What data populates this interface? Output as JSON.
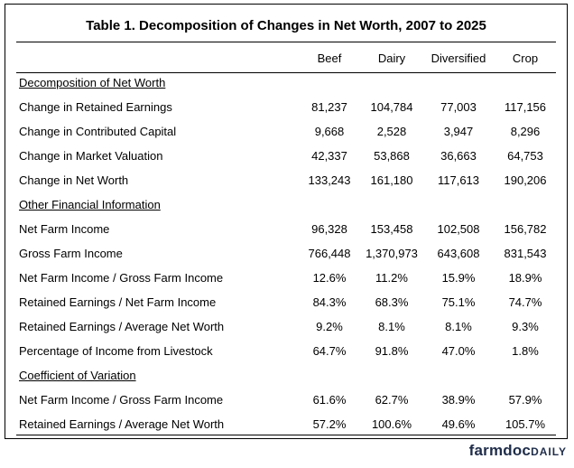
{
  "title": "Table 1.  Decomposition of Changes in Net Worth, 2007 to 2025",
  "columns": [
    "Beef",
    "Dairy",
    "Diversified",
    "Crop"
  ],
  "rows": [
    {
      "label": "Decomposition of Net Worth",
      "section": true,
      "values": [
        "",
        "",
        "",
        ""
      ]
    },
    {
      "label": "Change in Retained Earnings",
      "section": false,
      "values": [
        "81,237",
        "104,784",
        "77,003",
        "117,156"
      ]
    },
    {
      "label": "Change in Contributed Capital",
      "section": false,
      "values": [
        "9,668",
        "2,528",
        "3,947",
        "8,296"
      ]
    },
    {
      "label": "Change in Market Valuation",
      "section": false,
      "values": [
        "42,337",
        "53,868",
        "36,663",
        "64,753"
      ]
    },
    {
      "label": "Change in Net Worth",
      "section": false,
      "values": [
        "133,243",
        "161,180",
        "117,613",
        "190,206"
      ]
    },
    {
      "label": "Other Financial Information",
      "section": true,
      "values": [
        "",
        "",
        "",
        ""
      ]
    },
    {
      "label": "Net Farm Income",
      "section": false,
      "values": [
        "96,328",
        "153,458",
        "102,508",
        "156,782"
      ]
    },
    {
      "label": "Gross Farm Income",
      "section": false,
      "values": [
        "766,448",
        "1,370,973",
        "643,608",
        "831,543"
      ]
    },
    {
      "label": "Net Farm Income / Gross Farm Income",
      "section": false,
      "values": [
        "12.6%",
        "11.2%",
        "15.9%",
        "18.9%"
      ]
    },
    {
      "label": "Retained Earnings / Net Farm Income",
      "section": false,
      "values": [
        "84.3%",
        "68.3%",
        "75.1%",
        "74.7%"
      ]
    },
    {
      "label": "Retained Earnings / Average Net Worth",
      "section": false,
      "values": [
        "9.2%",
        "8.1%",
        "8.1%",
        "9.3%"
      ]
    },
    {
      "label": "Percentage of Income from Livestock",
      "section": false,
      "values": [
        "64.7%",
        "91.8%",
        "47.0%",
        "1.8%"
      ]
    },
    {
      "label": "Coefficient of Variation",
      "section": true,
      "values": [
        "",
        "",
        "",
        ""
      ]
    },
    {
      "label": "Net Farm Income / Gross Farm Income",
      "section": false,
      "values": [
        "61.6%",
        "62.7%",
        "38.9%",
        "57.9%"
      ]
    },
    {
      "label": "Retained Earnings / Average Net Worth",
      "section": false,
      "values": [
        "57.2%",
        "100.6%",
        "49.6%",
        "105.7%"
      ]
    }
  ],
  "logo": {
    "part1": "farmdoc",
    "part2": "DAILY"
  }
}
